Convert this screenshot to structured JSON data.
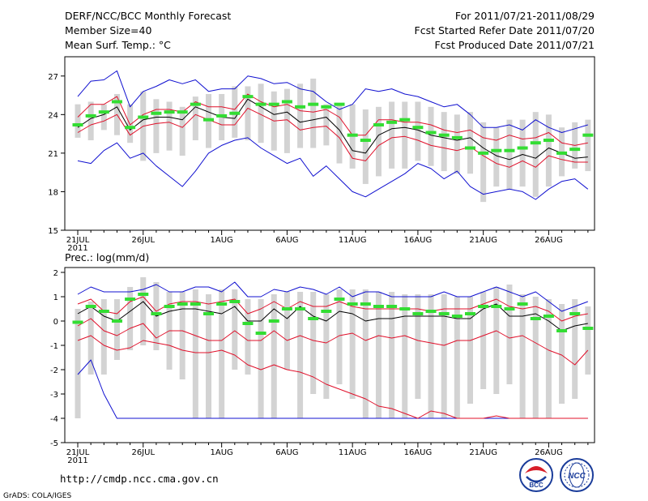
{
  "header": {
    "title": "DERF/NCC/BCC Monthly Forecast",
    "member_size": "Member Size=40",
    "variable": "Mean Surf. Temp.: °C",
    "period": "For 2011/07/21-2011/08/29",
    "refer_date": "Fcst Started Refer Date 2011/07/20",
    "produced_date": "Fcst Produced Date 2011/07/21"
  },
  "footer": {
    "url": "http://cmdp.ncc.cma.gov.cn",
    "credit": "GrADS: COLA/IGES",
    "logo_bcc": "BCC",
    "logo_ncc": "NCC"
  },
  "colors": {
    "box": "#d3d3d3",
    "green": "#33dd33",
    "red": "#e0102a",
    "blue": "#1010d0",
    "black": "#000000"
  },
  "chart_data": [
    {
      "type": "line",
      "title": "Mean Surf. Temp.: °C",
      "ylim": [
        15,
        28.5
      ],
      "yticks": [
        15,
        18,
        21,
        24,
        27
      ],
      "x_tick_labels": [
        "21JUL",
        "26JUL",
        "1AUG",
        "6AUG",
        "11AUG",
        "16AUG",
        "21AUG",
        "26AUG"
      ],
      "x_tick_days": [
        1,
        6,
        12,
        17,
        22,
        27,
        32,
        37
      ],
      "year_label": "2011",
      "days": 40,
      "series": [
        {
          "name": "max",
          "color": "blue",
          "values": [
            25.4,
            26.6,
            26.7,
            27.4,
            24.6,
            25.8,
            26.2,
            26.7,
            26.4,
            26.7,
            25.8,
            26.0,
            26.0,
            27.0,
            26.8,
            26.4,
            26.5,
            26.0,
            25.8,
            25.0,
            24.4,
            24.8,
            26.0,
            25.8,
            26.0,
            25.6,
            25.4,
            25.0,
            24.6,
            24.8,
            24.0,
            23.0,
            23.0,
            23.2,
            22.8,
            23.6,
            23.0,
            22.6,
            22.9,
            23.2
          ]
        },
        {
          "name": "upper",
          "color": "red",
          "values": [
            23.8,
            24.8,
            24.8,
            25.4,
            23.2,
            24.0,
            24.4,
            24.4,
            24.2,
            25.0,
            24.6,
            24.6,
            24.4,
            25.6,
            25.0,
            24.6,
            24.8,
            24.3,
            24.2,
            24.4,
            23.8,
            22.4,
            22.4,
            23.6,
            23.6,
            23.4,
            23.4,
            23.2,
            22.8,
            22.6,
            22.8,
            22.2,
            22.0,
            22.4,
            22.1,
            22.2,
            22.6,
            21.8,
            21.6,
            21.8
          ]
        },
        {
          "name": "mean",
          "color": "black",
          "values": [
            23.0,
            23.7,
            24.0,
            24.6,
            22.8,
            23.6,
            23.8,
            23.8,
            23.6,
            24.6,
            24.2,
            23.8,
            23.7,
            25.2,
            24.6,
            24.0,
            24.2,
            23.4,
            23.6,
            23.8,
            22.8,
            21.2,
            21.0,
            22.4,
            22.9,
            23.0,
            22.8,
            22.4,
            22.2,
            22.0,
            22.2,
            21.4,
            20.8,
            20.5,
            20.9,
            20.6,
            21.4,
            21.0,
            20.6,
            20.7
          ]
        },
        {
          "name": "lower",
          "color": "red",
          "values": [
            22.6,
            23.2,
            23.5,
            24.0,
            22.4,
            23.1,
            23.3,
            23.4,
            23.0,
            24.0,
            23.6,
            23.2,
            23.2,
            24.5,
            24.0,
            23.5,
            23.6,
            22.8,
            23.0,
            23.1,
            22.2,
            20.6,
            20.4,
            21.6,
            22.2,
            22.3,
            22.0,
            21.6,
            21.4,
            21.2,
            21.5,
            20.8,
            20.2,
            19.9,
            20.4,
            19.9,
            20.8,
            20.5,
            20.3,
            20.3
          ]
        },
        {
          "name": "min",
          "color": "blue",
          "values": [
            20.4,
            20.2,
            21.2,
            21.8,
            20.6,
            21.0,
            20.0,
            19.2,
            18.4,
            19.6,
            21.0,
            21.6,
            22.0,
            22.2,
            21.4,
            20.8,
            20.2,
            20.6,
            19.2,
            20.0,
            19.0,
            18.0,
            17.6,
            18.2,
            18.8,
            19.4,
            20.2,
            19.8,
            19.0,
            19.6,
            18.4,
            17.8,
            18.0,
            18.2,
            18.0,
            17.4,
            18.2,
            18.8,
            19.0,
            18.2
          ]
        },
        {
          "name": "ensemble_mean",
          "color": "green",
          "values": [
            23.2,
            23.9,
            24.2,
            25.0,
            23.0,
            23.8,
            24.1,
            24.2,
            24.2,
            24.8,
            23.6,
            23.9,
            24.1,
            25.4,
            24.8,
            24.8,
            25.0,
            24.6,
            24.8,
            24.6,
            24.8,
            22.4,
            22.0,
            23.2,
            23.4,
            23.6,
            23.0,
            22.6,
            22.4,
            22.2,
            21.4,
            21.0,
            21.2,
            21.2,
            21.4,
            21.8,
            22.0,
            21.0,
            21.3,
            22.4
          ]
        },
        {
          "name": "box_top",
          "color": "box",
          "values": [
            24.8,
            25.0,
            24.8,
            25.6,
            24.8,
            25.8,
            25.2,
            25.0,
            24.6,
            25.4,
            25.6,
            25.6,
            26.2,
            26.2,
            26.4,
            25.8,
            26.0,
            26.4,
            26.8,
            24.8,
            24.8,
            24.8,
            24.4,
            24.6,
            25.0,
            25.0,
            25.0,
            24.6,
            24.2,
            24.0,
            24.2,
            23.4,
            23.0,
            23.6,
            23.6,
            24.2,
            24.0,
            23.0,
            23.4,
            23.6
          ]
        },
        {
          "name": "box_bottom",
          "color": "box",
          "values": [
            22.2,
            22.0,
            22.8,
            22.4,
            21.8,
            20.4,
            21.0,
            21.2,
            20.8,
            22.0,
            21.4,
            22.0,
            22.2,
            22.0,
            21.8,
            21.2,
            21.0,
            21.4,
            21.4,
            21.6,
            20.2,
            19.8,
            18.6,
            19.2,
            19.8,
            19.8,
            20.4,
            20.0,
            19.6,
            19.4,
            19.4,
            17.2,
            18.4,
            18.2,
            18.4,
            17.6,
            18.4,
            19.2,
            19.8,
            19.6
          ]
        }
      ]
    },
    {
      "type": "line",
      "title": "Prec.: log(mm/d)",
      "ylim": [
        -5,
        2.2
      ],
      "yticks": [
        -5,
        -4,
        -3,
        -2,
        -1,
        0,
        1,
        2
      ],
      "x_tick_labels": [
        "21JUL",
        "26JUL",
        "1AUG",
        "6AUG",
        "11AUG",
        "16AUG",
        "21AUG",
        "26AUG"
      ],
      "x_tick_days": [
        1,
        6,
        12,
        17,
        22,
        27,
        32,
        37
      ],
      "year_label": "2011",
      "days": 40,
      "series": [
        {
          "name": "max",
          "color": "blue",
          "values": [
            1.1,
            1.4,
            1.2,
            1.2,
            1.2,
            1.3,
            1.5,
            1.2,
            1.2,
            1.4,
            1.4,
            1.2,
            1.6,
            1.0,
            1.0,
            1.3,
            1.2,
            1.4,
            1.3,
            1.1,
            1.4,
            1.0,
            1.2,
            1.2,
            1.0,
            1.0,
            1.0,
            1.0,
            1.2,
            1.0,
            1.0,
            1.2,
            1.4,
            1.2,
            1.0,
            1.2,
            0.8,
            0.4,
            0.6,
            0.8
          ]
        },
        {
          "name": "upper",
          "color": "red",
          "values": [
            0.7,
            0.9,
            0.4,
            0.3,
            0.8,
            1.0,
            0.4,
            0.7,
            0.8,
            0.8,
            0.7,
            0.8,
            0.9,
            0.3,
            0.5,
            0.8,
            0.5,
            0.8,
            0.6,
            0.6,
            0.8,
            0.6,
            0.5,
            0.5,
            0.5,
            0.5,
            0.5,
            0.4,
            0.5,
            0.5,
            0.5,
            0.7,
            0.9,
            0.6,
            0.5,
            0.6,
            0.4,
            0.0,
            0.2,
            0.3
          ]
        },
        {
          "name": "mean",
          "color": "black",
          "values": [
            0.3,
            0.6,
            0.2,
            0.0,
            0.4,
            0.8,
            0.2,
            0.4,
            0.5,
            0.5,
            0.4,
            0.3,
            0.6,
            0.0,
            0.0,
            0.5,
            0.1,
            0.6,
            0.2,
            0.0,
            0.4,
            0.3,
            0.0,
            0.1,
            0.1,
            0.2,
            0.2,
            0.2,
            0.2,
            0.1,
            0.1,
            0.5,
            0.7,
            0.2,
            0.2,
            0.3,
            0.0,
            -0.4,
            -0.2,
            -0.1
          ]
        },
        {
          "name": "lower",
          "color": "red",
          "values": [
            -0.2,
            0.1,
            -0.4,
            -0.6,
            -0.3,
            -0.1,
            -0.7,
            -0.4,
            -0.4,
            -0.6,
            -0.8,
            -0.8,
            -0.4,
            -0.8,
            -0.8,
            -0.4,
            -0.8,
            -0.6,
            -0.8,
            -0.9,
            -0.6,
            -0.5,
            -0.8,
            -0.6,
            -0.7,
            -0.6,
            -0.8,
            -0.9,
            -1.0,
            -0.8,
            -0.8,
            -0.6,
            -0.4,
            -0.7,
            -0.6,
            -0.9,
            -1.2,
            -1.4,
            -1.8,
            -1.2
          ]
        },
        {
          "name": "min",
          "color": "blue",
          "values": [
            -2.2,
            -1.6,
            -3.0,
            -4.0,
            -4.0,
            -4.0,
            -4.0,
            -4.0,
            -4.0,
            -4.0,
            -4.0,
            -4.0,
            -4.0,
            -4.0,
            -4.0,
            -4.0,
            -4.0,
            -4.0,
            -4.0,
            -4.0,
            -4.0,
            -4.0,
            -4.0,
            -4.0,
            -4.0,
            -4.0,
            -4.0,
            -4.0,
            -4.0,
            -4.0,
            -4.0,
            -4.0,
            -4.0,
            -4.0,
            -4.0,
            -4.0,
            -4.0,
            -4.0,
            -4.0,
            -4.0
          ]
        },
        {
          "name": "lowest",
          "color": "red",
          "values": [
            -0.8,
            -0.6,
            -1.0,
            -1.2,
            -1.1,
            -0.8,
            -0.9,
            -1.0,
            -1.2,
            -1.3,
            -1.3,
            -1.2,
            -1.4,
            -1.8,
            -2.0,
            -1.8,
            -2.0,
            -2.1,
            -2.3,
            -2.6,
            -2.8,
            -3.0,
            -3.2,
            -3.5,
            -3.6,
            -3.8,
            -4.0,
            -3.7,
            -3.8,
            -4.0,
            -4.0,
            -4.0,
            -3.9,
            -4.0,
            -4.0,
            -4.0,
            -4.0,
            -4.0,
            -4.0,
            -4.0
          ]
        },
        {
          "name": "ensemble_mean",
          "color": "green",
          "values": [
            -0.05,
            0.6,
            0.4,
            0.0,
            0.9,
            1.1,
            0.3,
            0.6,
            0.7,
            0.7,
            0.3,
            0.7,
            0.8,
            -0.1,
            -0.5,
            0.0,
            0.5,
            0.5,
            0.1,
            0.4,
            0.9,
            0.7,
            0.7,
            0.6,
            0.6,
            0.5,
            0.3,
            0.4,
            0.3,
            0.2,
            0.3,
            0.6,
            0.6,
            0.5,
            0.7,
            0.1,
            0.2,
            -0.4,
            0.3,
            -0.3
          ]
        },
        {
          "name": "box_top",
          "color": "box",
          "values": [
            0.5,
            0.8,
            0.9,
            0.9,
            1.4,
            1.8,
            1.6,
            1.2,
            1.2,
            1.3,
            1.1,
            1.3,
            1.3,
            0.9,
            0.9,
            1.1,
            1.2,
            1.2,
            1.2,
            1.1,
            1.3,
            1.3,
            1.3,
            1.2,
            1.2,
            1.1,
            1.1,
            1.1,
            1.1,
            1.0,
            1.0,
            1.2,
            1.4,
            1.5,
            1.1,
            1.0,
            0.9,
            0.7,
            0.9,
            0.6
          ]
        },
        {
          "name": "box_bottom",
          "color": "box",
          "values": [
            -4.0,
            -2.2,
            -2.2,
            -1.6,
            -1.2,
            -1.0,
            -1.2,
            -2.0,
            -2.4,
            -4.0,
            -4.0,
            -4.0,
            -2.0,
            -2.2,
            -4.0,
            -4.0,
            -2.0,
            -4.0,
            -3.0,
            -3.2,
            -2.6,
            -3.2,
            -4.0,
            -4.0,
            -4.0,
            -4.0,
            -3.2,
            -4.0,
            -4.0,
            -4.0,
            -3.4,
            -2.8,
            -3.0,
            -2.6,
            -4.0,
            -4.0,
            -4.0,
            -3.4,
            -3.2,
            -2.2
          ]
        }
      ]
    }
  ]
}
